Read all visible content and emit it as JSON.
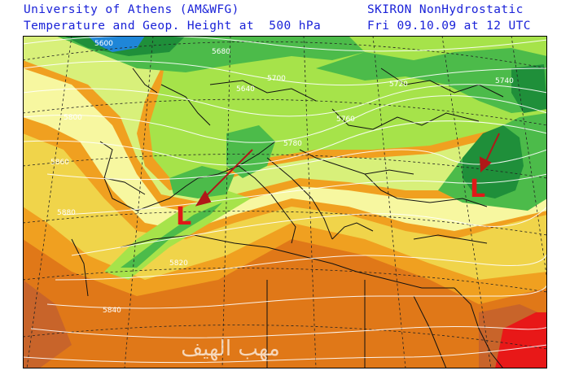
{
  "header": {
    "source": "University of Athens (AM&WFG)",
    "field": "Temperature and Geop. Height at  500 hPa",
    "model": "SKIRON NonHydrostatic",
    "valid_time": "Fri 09.10.09 at 12 UTC"
  },
  "map": {
    "contour_labels": {
      "c5600": "5600",
      "c5640": "5640",
      "c5680": "5680",
      "c5700": "5700",
      "c5720": "5720",
      "c5740": "5740",
      "c5760": "5760",
      "c5780": "5780",
      "c5800": "5800",
      "c5820": "5820",
      "c5840": "5840",
      "c5860": "5860",
      "c5880": "5880"
    },
    "low_markers": [
      "L",
      "L"
    ],
    "watermark": "مهب الهيف",
    "colors": {
      "deep_cold": "#1f86d8",
      "dark_green": "#1f8f3a",
      "green": "#4cbb4a",
      "light_green": "#a6e34a",
      "yellow_green": "#d8f07a",
      "pale_yellow": "#f7f7a0",
      "yellow": "#f0d44a",
      "orange": "#f0a020",
      "dark_orange": "#e07818",
      "brown": "#c8642a",
      "red": "#e81818",
      "arrow": "#b01818",
      "low_marker": "#e01818",
      "header_text": "#1a22d8"
    }
  }
}
